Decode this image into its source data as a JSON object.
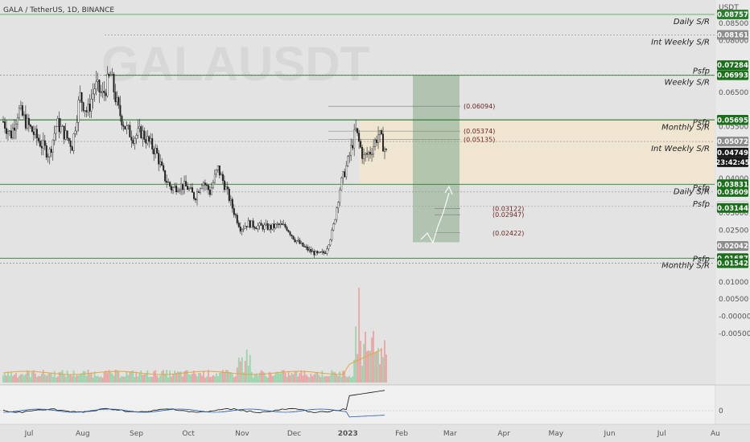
{
  "chart_data": {
    "type": "candlestick",
    "title": "GALA / TetherUS, 1D, BINANCE",
    "currency": "USDT",
    "watermark": "GALAUSDT",
    "y_axis_ticks": [
      "0.08500",
      "0.08000",
      "0.06500",
      "0.05500",
      "0.04000",
      "0.03000",
      "0.02500",
      "0.01000",
      "0.00500",
      "-0.00000",
      "-0.00500"
    ],
    "y_axis_tick_values": [
      0.085,
      0.08,
      0.065,
      0.055,
      0.04,
      0.03,
      0.025,
      0.01,
      0.005,
      0.0,
      -0.005
    ],
    "indicator_tick": "0",
    "x_axis_labels": [
      "Jul",
      "Aug",
      "Sep",
      "Oct",
      "Nov",
      "Dec",
      "2023",
      "Feb",
      "Mar",
      "Apr",
      "May",
      "Jun",
      "Jul",
      "Au"
    ],
    "x_axis_dates": [
      "2022-07-01",
      "2022-08-01",
      "2022-09-01",
      "2022-10-01",
      "2022-11-01",
      "2022-12-01",
      "2023-01-01",
      "2023-02-01",
      "2023-03-01",
      "2023-04-01",
      "2023-05-01",
      "2023-06-01",
      "2023-07-01",
      "2023-08-01"
    ],
    "levels": [
      {
        "label": "Daily S/R",
        "price": 0.08757,
        "tag": "0.08757",
        "tag_color": "#2e7d32",
        "line_color": "#4caf50"
      },
      {
        "label": "Int Weekly S/R",
        "price": 0.08161,
        "tag": "0.08161",
        "tag_color": "#8c8c8c",
        "line_color": "#8c8c8c"
      },
      {
        "label": "",
        "price": 0.07284,
        "tag": "0.07284",
        "tag_color": "#1b6e1b",
        "line_color": ""
      },
      {
        "label": "Psfp",
        "price": 0.07,
        "tag": "0.07000",
        "tag_color": "#1b6e1b",
        "line_color": "#8c8c8c"
      },
      {
        "label": "Weekly S/R",
        "price": 0.06993,
        "tag": "0.06993",
        "tag_color": "#1b6e1b",
        "line_color": "#2e7d32"
      },
      {
        "label": "",
        "price": 0.05702,
        "tag": "0.05702",
        "tag_color": "#1b6e1b",
        "line_color": "#2e7d32"
      },
      {
        "label": "Monthly S/R",
        "price": 0.05695,
        "tag": "0.05695",
        "tag_color": "#1b6e1b",
        "line_color": "#2e7d32"
      },
      {
        "label": "Psfp",
        "price": 0.055,
        "tag": "",
        "tag_color": "",
        "line_color": ""
      },
      {
        "label": "Int Weekly S/R",
        "price": 0.05072,
        "tag": "0.05072",
        "tag_color": "#8c8c8c",
        "line_color": "#8c8c8c"
      },
      {
        "label": "",
        "price": 0.04749,
        "tag": "0.04749",
        "tag_color": "#1a1a1a",
        "line_color": ""
      },
      {
        "label": "Daily S/R",
        "price": 0.03831,
        "tag": "0.03831",
        "tag_color": "#1b6e1b",
        "line_color": "#2e7d32"
      },
      {
        "label": "Psfp",
        "price": 0.03609,
        "tag": "0.03609",
        "tag_color": "#1b6e1b",
        "line_color": "#8c8c8c"
      },
      {
        "label": "",
        "price": 0.0319,
        "tag": "0.03190",
        "tag_color": "#f2f2f2",
        "line_color": "#9e9e9e"
      },
      {
        "label": "Psfp",
        "price": 0.03144,
        "tag": "0.03144",
        "tag_color": "#1b6e1b",
        "line_color": ""
      },
      {
        "label": "",
        "price": 0.02042,
        "tag": "0.02042",
        "tag_color": "#8c8c8c",
        "line_color": ""
      },
      {
        "label": "Monthly S/R",
        "price": 0.01687,
        "tag": "0.01687",
        "tag_color": "#1b6e1b",
        "line_color": "#2e7d32"
      },
      {
        "label": "Psfp",
        "price": 0.01542,
        "tag": "0.01542",
        "tag_color": "#1b6e1b",
        "line_color": "#8c8c8c"
      }
    ],
    "countdown": "23:42:45",
    "targets": [
      {
        "label": "(0.06094)",
        "price": 0.06094
      },
      {
        "label": "(0.05374)",
        "price": 0.05374
      },
      {
        "label": "(0.05135)",
        "price": 0.05135
      },
      {
        "label": "(0.03122)",
        "price": 0.03122
      },
      {
        "label": "(0.02947)",
        "price": 0.02947
      },
      {
        "label": "(0.02422)",
        "price": 0.02422
      }
    ],
    "zones": [
      {
        "name": "monthly-resistance-zone",
        "from_price": 0.05695,
        "to_price": 0.03831,
        "color": "#f3e6c9"
      },
      {
        "name": "projection-box",
        "from_price": 0.07,
        "to_price": 0.0215,
        "color": "#9fb9a0"
      }
    ],
    "series_close": [
      0.0565,
      0.0525,
      0.06,
      0.0562,
      0.053,
      0.0498,
      0.047,
      0.056,
      0.053,
      0.0495,
      0.064,
      0.059,
      0.067,
      0.064,
      0.07,
      0.06,
      0.0545,
      0.052,
      0.0535,
      0.0505,
      0.0475,
      0.0405,
      0.037,
      0.038,
      0.0375,
      0.0345,
      0.0395,
      0.036,
      0.043,
      0.0375,
      0.031,
      0.0255,
      0.027,
      0.0262,
      0.026,
      0.0258,
      0.0265,
      0.0258,
      0.0225,
      0.0205,
      0.019,
      0.018,
      0.0185,
      0.025,
      0.038,
      0.045,
      0.054,
      0.046,
      0.048,
      0.053,
      0.0475
    ]
  }
}
